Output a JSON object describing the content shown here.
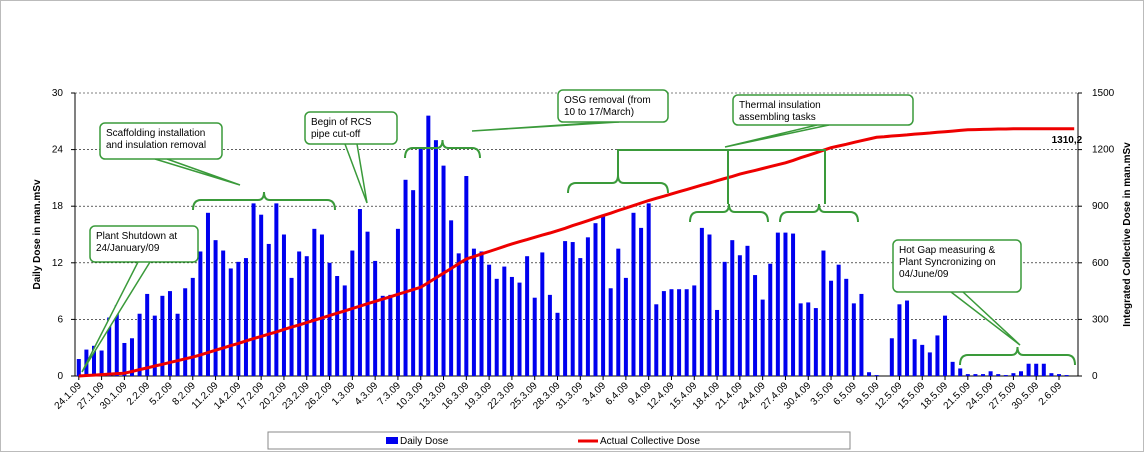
{
  "chart_data": {
    "type": "bar-line",
    "y_label": "Daily Dose in man.mSv",
    "y2_label": "Integrated Collective Dose in man.mSv",
    "categories": [
      "24.1.09",
      null,
      null,
      "27.1.09",
      null,
      null,
      "30.1.09",
      null,
      null,
      "2.2.09",
      null,
      null,
      "5.2.09",
      null,
      null,
      "8.2.09",
      null,
      null,
      "11.2.09",
      null,
      null,
      "14.2.09",
      null,
      null,
      "17.2.09",
      null,
      null,
      "20.2.09",
      null,
      null,
      "23.2.09",
      null,
      null,
      "26.2.09",
      null,
      null,
      "1.3.09",
      null,
      null,
      "4.3.09",
      null,
      null,
      "7.3.09",
      null,
      null,
      "10.3.09",
      null,
      null,
      "13.3.09",
      null,
      null,
      "16.3.09",
      null,
      null,
      "19.3.09",
      null,
      null,
      "22.3.09",
      null,
      null,
      "25.3.09",
      null,
      null,
      "28.3.09",
      null,
      null,
      "31.3.09",
      null,
      null,
      "3.4.09",
      null,
      null,
      "6.4.09",
      null,
      null,
      "9.4.09",
      null,
      null,
      "12.4.09",
      null,
      null,
      "15.4.09",
      null,
      null,
      "18.4.09",
      null,
      null,
      "21.4.09",
      null,
      null,
      "24.4.09",
      null,
      null,
      "27.4.09",
      null,
      null,
      "30.4.09",
      null,
      null,
      "3.5.09",
      null,
      null,
      "6.5.09",
      null,
      null,
      "9.5.09",
      null,
      null,
      "12.5.09",
      null,
      null,
      "15.5.09",
      null,
      null,
      "18.5.09",
      null,
      null,
      "21.5.09",
      null,
      null,
      "24.5.09",
      null,
      null,
      "27.5.09",
      null,
      null,
      "30.5.09",
      null,
      null,
      "2.6.09",
      null,
      null
    ],
    "series": [
      {
        "name": "Daily Dose",
        "color": "#0000ee",
        "values": [
          1.8,
          2.8,
          3.2,
          2.7,
          6.2,
          7.5,
          3.5,
          4.0,
          6.6,
          8.7,
          6.4,
          8.5,
          9.0,
          6.6,
          9.3,
          10.4,
          13.2,
          17.3,
          14.4,
          13.3,
          11.4,
          12.1,
          12.5,
          18.3,
          17.1,
          14.0,
          18.3,
          15.0,
          10.4,
          13.2,
          12.7,
          15.6,
          15.0,
          12.0,
          10.6,
          9.6,
          13.3,
          17.7,
          15.3,
          12.2,
          8.5,
          8.6,
          15.6,
          20.8,
          19.7,
          24.1,
          27.6,
          25.0,
          22.3,
          16.5,
          13.0,
          21.2,
          13.5,
          13.2,
          11.8,
          10.3,
          11.6,
          10.5,
          9.9,
          12.7,
          8.3,
          13.1,
          8.6,
          6.7,
          14.3,
          14.2,
          12.5,
          14.7,
          16.2,
          17.1,
          9.3,
          13.5,
          10.4,
          17.3,
          15.7,
          18.3,
          7.6,
          9.0,
          9.2,
          9.2,
          9.2,
          9.6,
          15.7,
          15.0,
          7.0,
          12.1,
          14.4,
          12.8,
          13.8,
          10.7,
          8.1,
          11.9,
          15.2,
          15.2,
          15.1,
          7.7,
          7.8,
          7.2,
          13.3,
          10.1,
          11.8,
          10.3,
          7.7,
          8.7,
          0.4,
          0.1,
          0,
          4.0,
          7.6,
          8.0,
          3.9,
          3.3,
          2.5,
          4.3,
          6.4,
          1.5,
          0.8,
          0.2,
          0.2,
          0.2,
          0.5,
          0.2,
          0.1,
          0.3,
          0.5,
          1.3,
          1.3,
          1.3,
          0.3,
          0.2,
          0.1,
          0
        ]
      },
      {
        "name": "Actual Collective Dose",
        "color": "#ee0000",
        "axis": "y2",
        "values": [
          0,
          2.5,
          5,
          7.5,
          10,
          12.5,
          15,
          24,
          34,
          43,
          53,
          62,
          72,
          81,
          91,
          100,
          112,
          124,
          137,
          149,
          161,
          173,
          186,
          198,
          210,
          222,
          234,
          247,
          259,
          271,
          283,
          296,
          308,
          320,
          333,
          345,
          358,
          370,
          383,
          395,
          408,
          420,
          433,
          445,
          458,
          470,
          495,
          520,
          545,
          570,
          595,
          620,
          633,
          647,
          660,
          673,
          687,
          700,
          712,
          723,
          735,
          747,
          758,
          770,
          783,
          797,
          810,
          823,
          837,
          850,
          863,
          877,
          890,
          903,
          917,
          930,
          942,
          953,
          965,
          977,
          988,
          1000,
          1012,
          1023,
          1035,
          1047,
          1058,
          1070,
          1080,
          1090,
          1100,
          1110,
          1120,
          1130,
          1143,
          1157,
          1170,
          1183,
          1197,
          1210,
          1219,
          1228,
          1238,
          1247,
          1256,
          1265,
          1268,
          1272,
          1275,
          1278,
          1282,
          1285,
          1288,
          1292,
          1295,
          1298,
          1302,
          1305,
          1306,
          1307,
          1308,
          1309,
          1309,
          1310,
          1310,
          1310,
          1310,
          1310,
          1310,
          1310,
          1310,
          1310.2
        ],
        "value_labels": [
          null,
          null,
          null,
          null,
          null,
          null,
          null,
          null,
          null,
          null,
          null,
          null,
          null,
          null,
          null,
          null,
          null,
          null,
          null,
          null,
          null,
          null,
          null,
          null,
          null,
          null,
          null,
          null,
          null,
          null,
          null,
          null,
          null,
          null,
          null,
          null,
          null,
          null,
          null,
          null,
          null,
          null,
          null,
          null,
          null,
          null,
          null,
          null,
          null,
          null,
          null,
          null,
          null,
          null,
          null,
          null,
          null,
          null,
          null,
          null,
          null,
          null,
          null,
          null,
          null,
          null,
          null,
          null,
          null,
          null,
          null,
          null,
          null,
          null,
          null,
          null,
          null,
          null,
          null,
          null,
          null,
          null,
          null,
          null,
          null,
          null,
          null,
          null,
          null,
          null,
          null,
          null,
          null,
          null,
          null,
          null,
          null,
          null,
          null,
          null,
          null,
          null,
          null,
          null,
          null,
          null,
          null,
          null,
          null,
          null,
          null,
          null,
          null,
          null,
          null,
          null,
          null,
          null,
          null,
          null,
          null,
          null,
          null,
          null,
          null,
          null,
          null,
          null,
          null,
          null,
          null,
          "1310,2"
        ]
      }
    ],
    "ylim": [
      0,
      30
    ],
    "yticks": [
      0,
      6,
      12,
      18,
      24,
      30
    ],
    "y2lim": [
      0,
      1500
    ],
    "y2ticks": [
      0,
      300,
      600,
      900,
      1200,
      1500
    ],
    "grid": true,
    "annotations": [
      {
        "lines": [
          "Plant Shutdown at",
          "24/January/09"
        ]
      },
      {
        "lines": [
          "Scaffolding installation",
          "and insulation removal"
        ]
      },
      {
        "lines": [
          "Begin of RCS",
          "pipe cut-off"
        ]
      },
      {
        "lines": [
          "OSG removal (from",
          "10 to 17/March)"
        ]
      },
      {
        "lines": [
          "Thermal insulation",
          "assembling tasks"
        ]
      },
      {
        "lines": [
          "Hot Gap measuring &",
          "Plant Syncronizing  on",
          "04/June/09"
        ]
      }
    ]
  }
}
